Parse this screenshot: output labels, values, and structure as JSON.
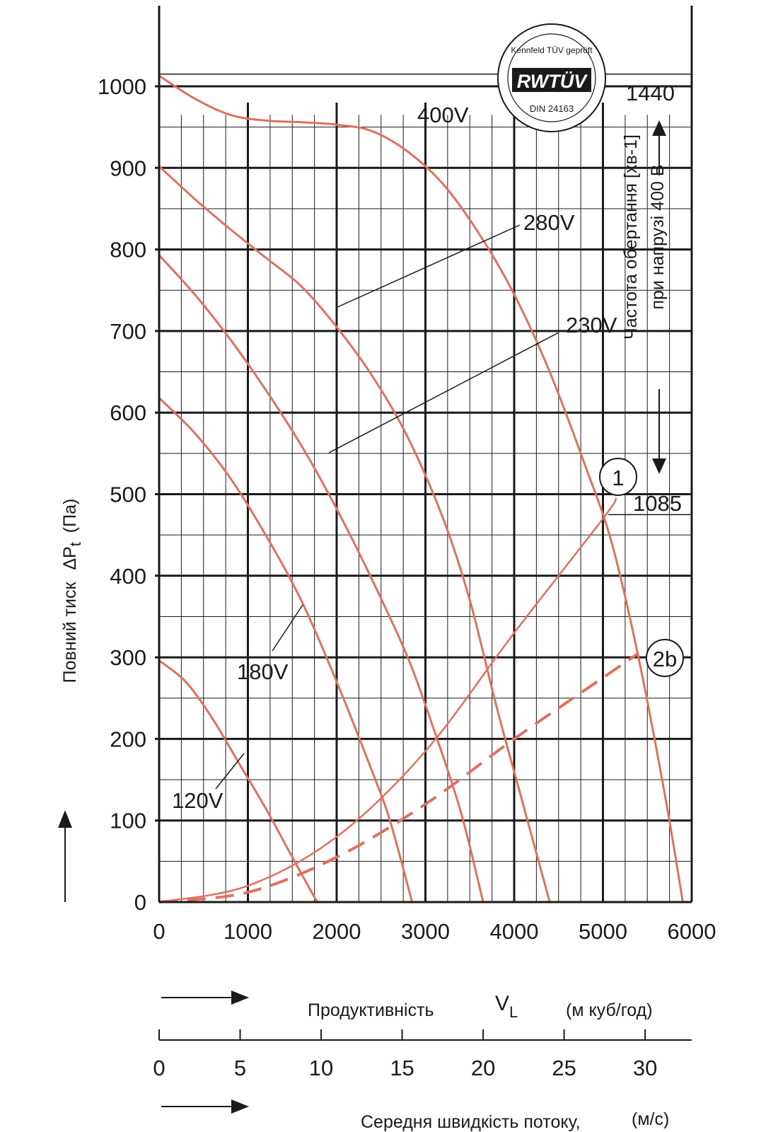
{
  "chart_data": {
    "type": "line",
    "xlabel": "Продуктивність",
    "xlabel_symbol": "V",
    "xlabel_symbol_sub": "L",
    "xlabel_unit": "(м куб/год)",
    "x2label": "Середня швидкість потоку,",
    "x2label_unit": "(м/с)",
    "ylabel": "Повний тиск",
    "ylabel_symbol": "ΔP",
    "ylabel_symbol_sub": "t",
    "ylabel_unit": "(Па)",
    "right_label_line1": "Частота обертання [хв-1]",
    "right_label_line2": "при напрузі 400 В",
    "xlim": [
      0,
      6000
    ],
    "ylim": [
      0,
      1000
    ],
    "x_ticks": [
      "0",
      "1000",
      "2000",
      "3000",
      "4000",
      "5000",
      "6000"
    ],
    "y_ticks": [
      "0",
      "100",
      "200",
      "300",
      "400",
      "500",
      "600",
      "700",
      "800",
      "900",
      "1000"
    ],
    "x2_ticks": [
      "0",
      "5",
      "10",
      "15",
      "20",
      "25",
      "30"
    ],
    "x2_tick_values": [
      0,
      5,
      10,
      15,
      20,
      25,
      30
    ],
    "x2_scale": 182.5,
    "rpm_max": "1440",
    "rpm_max_pressure": 1015,
    "rpm_min": "1085",
    "rpm_min_pressure": 475,
    "logo_text": "RWTÜV",
    "logo_top": "Kennfeld TÜV geprüft",
    "logo_bottom": "DIN 24163",
    "series": [
      {
        "name": "400V",
        "points": [
          [
            0,
            1013
          ],
          [
            400,
            985
          ],
          [
            800,
            965
          ],
          [
            1200,
            958
          ],
          [
            1600,
            956
          ],
          [
            2000,
            953
          ],
          [
            2400,
            945
          ],
          [
            2800,
            920
          ],
          [
            3200,
            880
          ],
          [
            3600,
            820
          ],
          [
            4000,
            745
          ],
          [
            4400,
            650
          ],
          [
            4800,
            535
          ],
          [
            5100,
            440
          ],
          [
            5400,
            300
          ],
          [
            5700,
            130
          ],
          [
            5900,
            0
          ]
        ]
      },
      {
        "name": "280V",
        "points": [
          [
            0,
            902
          ],
          [
            400,
            862
          ],
          [
            800,
            825
          ],
          [
            1200,
            790
          ],
          [
            1600,
            755
          ],
          [
            2000,
            705
          ],
          [
            2400,
            645
          ],
          [
            2800,
            570
          ],
          [
            3200,
            470
          ],
          [
            3500,
            370
          ],
          [
            3800,
            240
          ],
          [
            4100,
            120
          ],
          [
            4400,
            0
          ]
        ]
      },
      {
        "name": "230V",
        "points": [
          [
            0,
            793
          ],
          [
            400,
            745
          ],
          [
            800,
            690
          ],
          [
            1200,
            628
          ],
          [
            1600,
            560
          ],
          [
            2000,
            482
          ],
          [
            2400,
            395
          ],
          [
            2800,
            300
          ],
          [
            3100,
            210
          ],
          [
            3400,
            110
          ],
          [
            3650,
            0
          ]
        ]
      },
      {
        "name": "180V",
        "points": [
          [
            0,
            618
          ],
          [
            400,
            575
          ],
          [
            800,
            520
          ],
          [
            1200,
            450
          ],
          [
            1600,
            370
          ],
          [
            2000,
            270
          ],
          [
            2400,
            160
          ],
          [
            2600,
            100
          ],
          [
            2850,
            0
          ]
        ]
      },
      {
        "name": "120V",
        "points": [
          [
            0,
            296
          ],
          [
            300,
            270
          ],
          [
            600,
            225
          ],
          [
            900,
            170
          ],
          [
            1200,
            115
          ],
          [
            1500,
            55
          ],
          [
            1780,
            0
          ]
        ]
      }
    ],
    "system_curves": [
      {
        "name": "1",
        "points": [
          [
            0,
            0
          ],
          [
            1000,
            20
          ],
          [
            2000,
            80
          ],
          [
            3000,
            185
          ],
          [
            4000,
            330
          ],
          [
            5000,
            470
          ],
          [
            5150,
            495
          ]
        ]
      },
      {
        "name": "2b",
        "points": [
          [
            0,
            0
          ],
          [
            1000,
            12
          ],
          [
            2000,
            55
          ],
          [
            3000,
            120
          ],
          [
            4000,
            200
          ],
          [
            5000,
            275
          ],
          [
            5400,
            305
          ]
        ]
      }
    ],
    "voltage_labels": [
      "400V",
      "280V",
      "230V",
      "180V",
      "120V"
    ],
    "curve_markers": [
      "1",
      "2b"
    ]
  }
}
